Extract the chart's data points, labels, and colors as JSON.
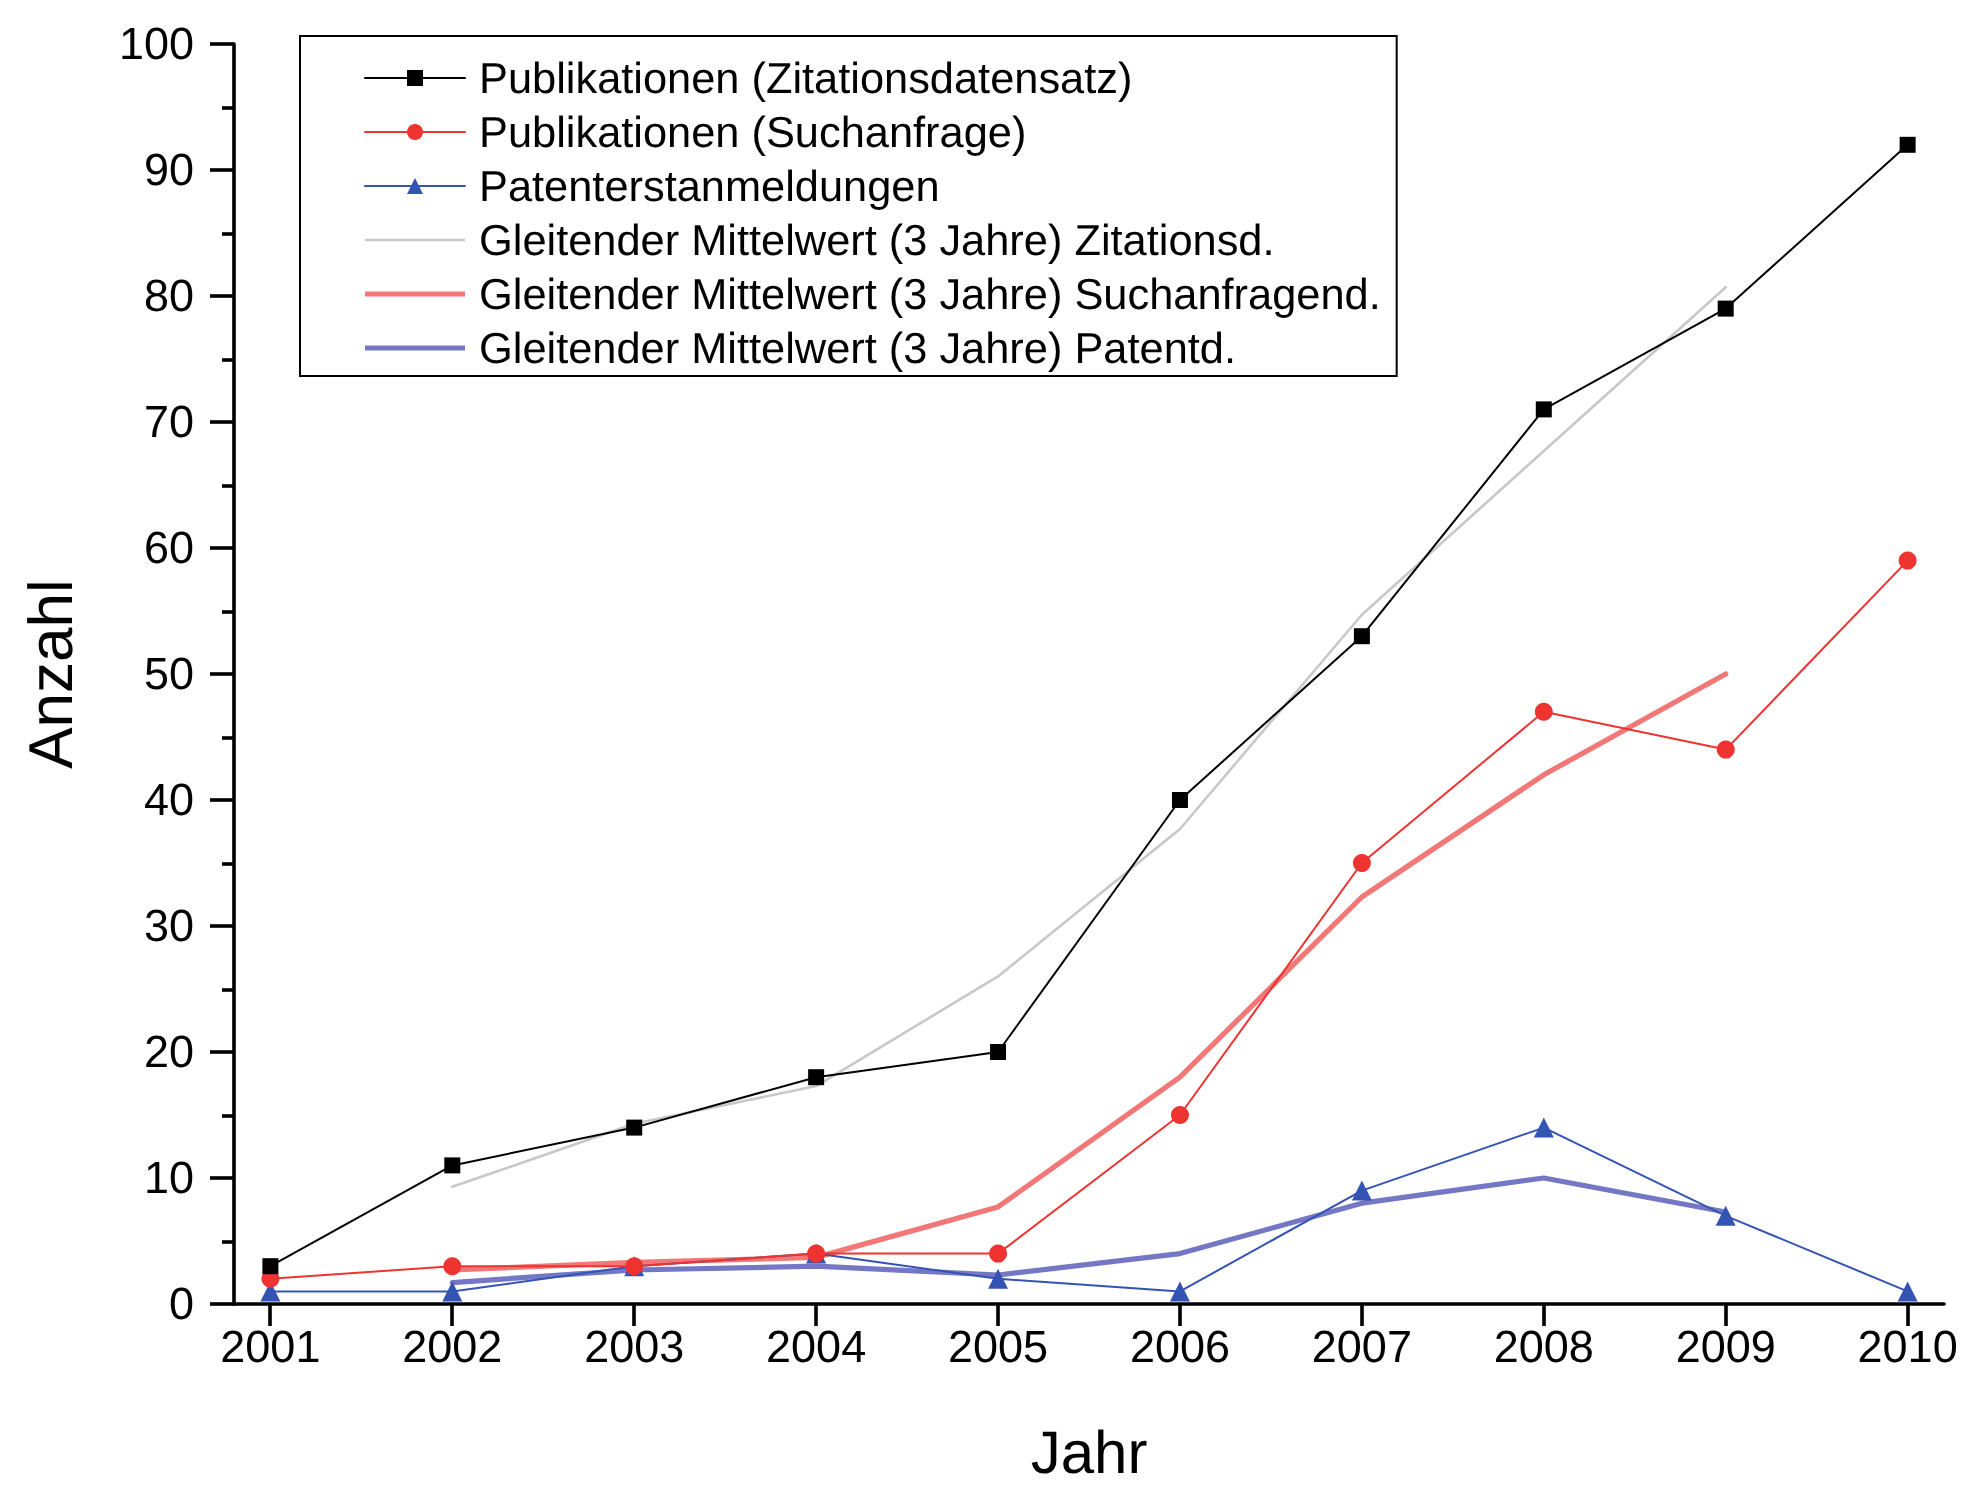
{
  "chart_data": {
    "type": "line",
    "xlabel": "Jahr",
    "ylabel": "Anzahl",
    "x": [
      2001,
      2002,
      2003,
      2004,
      2005,
      2006,
      2007,
      2008,
      2009,
      2010
    ],
    "xlim": [
      2000.8,
      2010.2
    ],
    "xticks": [
      2001,
      2002,
      2003,
      2004,
      2005,
      2006,
      2007,
      2008,
      2009,
      2010
    ],
    "ylim": [
      0,
      100
    ],
    "yticks": [
      0,
      {
        "value": 5,
        "label": null
      },
      10,
      {
        "value": 15,
        "label": null
      },
      20,
      {
        "value": 25,
        "label": null
      },
      30,
      {
        "value": 35,
        "label": null
      },
      40,
      {
        "value": 45,
        "label": null
      },
      50,
      {
        "value": 55,
        "label": null
      },
      60,
      {
        "value": 65,
        "label": null
      },
      70,
      {
        "value": 75,
        "label": null
      },
      80,
      {
        "value": 85,
        "label": null
      },
      90,
      {
        "value": 95,
        "label": null
      },
      100
    ],
    "grid": false,
    "legend": "top left",
    "series": [
      {
        "name": "Publikationen (Zitationsdatensatz)",
        "color": "#000000",
        "marker": "square",
        "values": [
          3,
          11,
          14,
          18,
          20,
          40,
          53,
          71,
          79,
          92
        ]
      },
      {
        "name": "Publikationen (Suchanfrage)",
        "color": "#ee3330",
        "marker": "circle",
        "values": [
          2,
          3,
          3,
          4,
          4,
          15,
          35,
          47,
          44,
          59
        ]
      },
      {
        "name": "Patenterstanmeldungen",
        "color": "#3454b4",
        "marker": "triangle",
        "values": [
          1,
          1,
          3,
          4,
          2,
          1,
          9,
          14,
          7,
          1
        ]
      },
      {
        "name": "Gleitender Mittelwert (3 Jahre) Zitationsd.",
        "color": "#c8c8c8",
        "marker": "none",
        "x": [
          2002,
          2003,
          2004,
          2005,
          2006,
          2007,
          2008,
          2009
        ],
        "values": [
          9.3,
          14.3,
          17.3,
          26,
          37.7,
          54.7,
          67.7,
          80.7
        ]
      },
      {
        "name": "Gleitender Mittelwert (3 Jahre) Suchanfragend.",
        "color": "#f27777",
        "marker": "none",
        "x": [
          2002,
          2003,
          2004,
          2005,
          2006,
          2007,
          2008,
          2009
        ],
        "values": [
          2.7,
          3.3,
          3.7,
          7.7,
          18,
          32.3,
          42,
          50
        ]
      },
      {
        "name": "Gleitender Mittelwert (3 Jahre) Patentd.",
        "color": "#7478c4",
        "marker": "none",
        "x": [
          2002,
          2003,
          2004,
          2005,
          2006,
          2007,
          2008,
          2009
        ],
        "values": [
          1.7,
          2.7,
          3,
          2.3,
          4,
          8,
          10,
          7.3
        ]
      }
    ]
  }
}
